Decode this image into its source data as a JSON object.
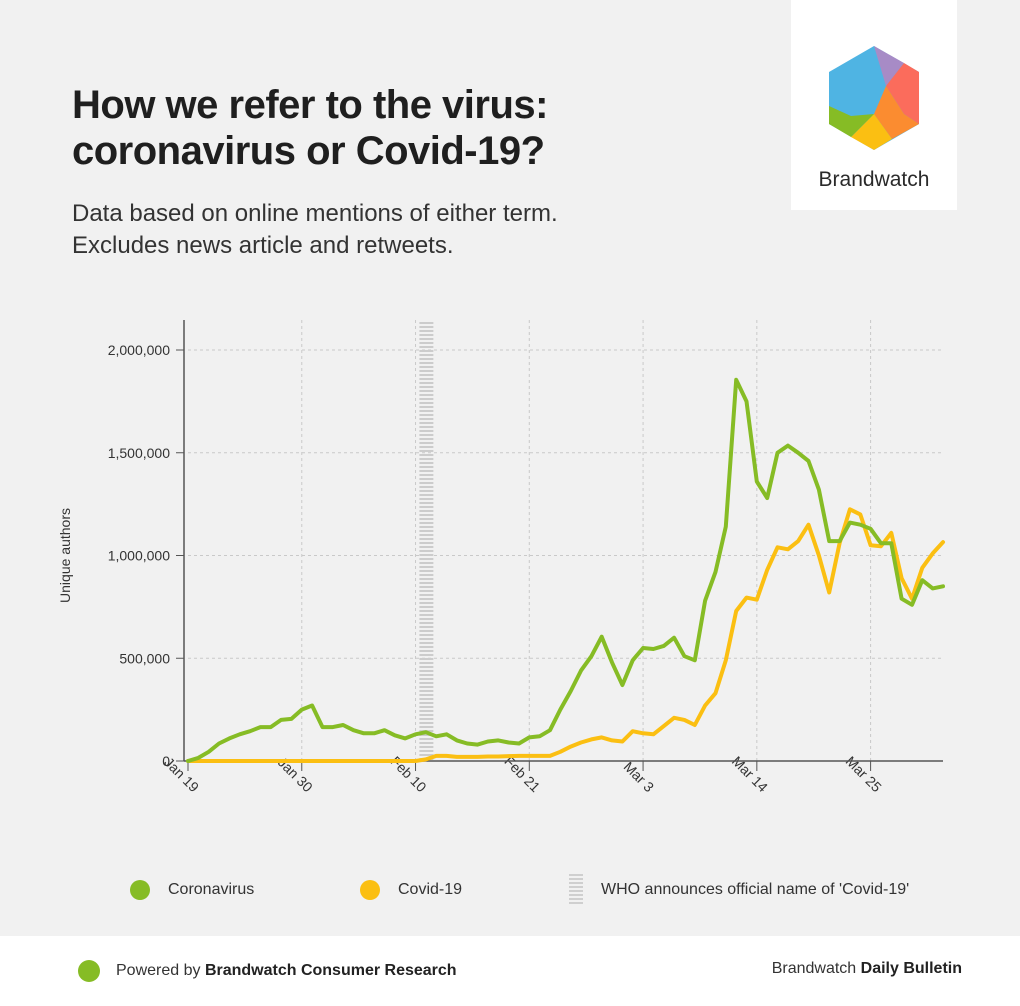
{
  "header": {
    "title_line1": "How we refer to the virus:",
    "title_line2": "coronavirus or Covid-19?",
    "subtitle_line1": "Data based on online mentions of either term.",
    "subtitle_line2": "Excludes news article and retweets."
  },
  "brand": {
    "name": "Brandwatch"
  },
  "colors": {
    "coronavirus": "#86bc25",
    "covid": "#fbbf12",
    "who_band": "#cccccc",
    "grid": "#c9c9c9",
    "axis": "#555555"
  },
  "legend": {
    "coronavirus": "Coronavirus",
    "covid": "Covid-19",
    "who": "WHO  announces official name of 'Covid-19'"
  },
  "footer": {
    "powered_prefix": "Powered by ",
    "powered_bold": "Brandwatch Consumer Research",
    "right_prefix": "Brandwatch ",
    "right_bold": "Daily Bulletin"
  },
  "chart_data": {
    "type": "line",
    "ylabel": "Unique authors",
    "xlabel": "",
    "ylim": [
      0,
      2000000
    ],
    "yticks": [
      0,
      500000,
      1000000,
      1500000,
      2000000
    ],
    "ytick_labels": [
      "0",
      "500,000",
      "1,000,000",
      "1,500,000",
      "2,000,000"
    ],
    "x_start_label": "Jan 19",
    "x_days": 70,
    "xticks": [
      0,
      11,
      22,
      33,
      44,
      55,
      66
    ],
    "xtick_labels": [
      "Jan 19",
      "Jan 30",
      "Feb 10",
      "Feb 21",
      "Mar 3",
      "Mar 14",
      "Mar 25"
    ],
    "who_annotation_day": 23,
    "grid": true,
    "series": [
      {
        "name": "Coronavirus",
        "values": [
          0,
          15000,
          45000,
          85000,
          110000,
          130000,
          145000,
          165000,
          165000,
          200000,
          205000,
          250000,
          270000,
          165000,
          165000,
          175000,
          150000,
          135000,
          135000,
          150000,
          125000,
          110000,
          130000,
          140000,
          120000,
          130000,
          100000,
          85000,
          80000,
          95000,
          100000,
          90000,
          85000,
          115000,
          120000,
          150000,
          250000,
          340000,
          440000,
          510000,
          605000,
          480000,
          370000,
          490000,
          550000,
          545000,
          560000,
          600000,
          510000,
          490000,
          780000,
          920000,
          1140000,
          1855000,
          1750000,
          1360000,
          1280000,
          1500000,
          1535000,
          1500000,
          1460000,
          1320000,
          1070000,
          1070000,
          1160000,
          1150000,
          1130000,
          1060000,
          1060000,
          790000,
          760000,
          880000,
          840000,
          850000
        ]
      },
      {
        "name": "Covid-19",
        "values": [
          0,
          0,
          0,
          0,
          0,
          0,
          0,
          0,
          0,
          0,
          0,
          0,
          0,
          0,
          0,
          0,
          0,
          0,
          0,
          0,
          0,
          0,
          0,
          8000,
          25000,
          25000,
          20000,
          20000,
          20000,
          22000,
          22000,
          24000,
          25000,
          25000,
          25000,
          25000,
          45000,
          70000,
          90000,
          105000,
          115000,
          100000,
          95000,
          145000,
          135000,
          130000,
          170000,
          210000,
          200000,
          175000,
          270000,
          330000,
          490000,
          730000,
          795000,
          785000,
          930000,
          1040000,
          1030000,
          1070000,
          1150000,
          1000000,
          820000,
          1060000,
          1225000,
          1200000,
          1050000,
          1045000,
          1110000,
          890000,
          790000,
          940000,
          1010000,
          1065000
        ]
      }
    ]
  }
}
